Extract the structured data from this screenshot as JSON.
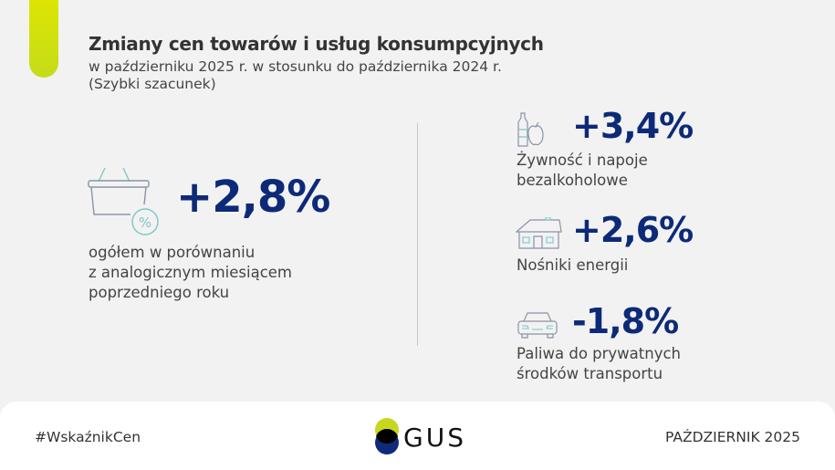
{
  "header": {
    "title": "Zmiany cen towarów i usług konsumpcyjnych",
    "subtitle_line1": "w październiku 2025 r. w stosunku do października 2024 r.",
    "subtitle_line2": "(Szybki szacunek)"
  },
  "overall": {
    "icon": "basket-percent-icon",
    "value": "+2,8%",
    "desc_lines": [
      "ogółem w porównaniu",
      "z analogicznym miesiącem",
      "poprzedniego roku"
    ]
  },
  "categories": [
    {
      "icon": "bottle-apple-icon",
      "value": "+3,4%",
      "label_lines": [
        "Żywność i napoje",
        "bezalkoholowe"
      ]
    },
    {
      "icon": "house-icon",
      "value": "+2,6%",
      "label_lines": [
        "Nośniki energii"
      ]
    },
    {
      "icon": "car-icon",
      "value": "-1,8%",
      "label_lines": [
        "Paliwa do prywatnych",
        "środków transportu"
      ]
    }
  ],
  "footer": {
    "hashtag": "#WskaźnikCen",
    "logo_text": "GUS",
    "date": "PAŹDZIERNIK 2025"
  },
  "colors": {
    "accent": "#d4e200",
    "value": "#0d2a78",
    "icon_stroke": "#8a93a8",
    "icon_teal": "#7fc6c6"
  }
}
